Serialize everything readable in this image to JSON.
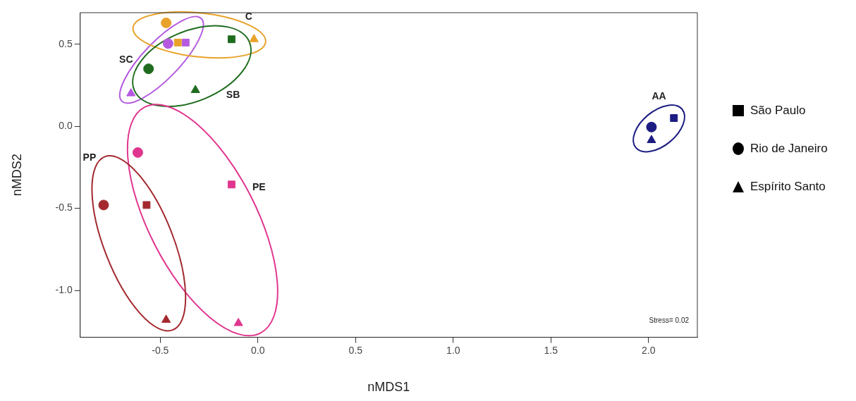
{
  "chart_data": {
    "type": "scatter",
    "xlabel": "nMDS1",
    "ylabel": "nMDS2",
    "xlim": [
      -0.91,
      2.25
    ],
    "ylim": [
      -1.286,
      0.692
    ],
    "xticks": [
      -0.5,
      {
        "value": 0,
        "label": "0.0"
      },
      0.5,
      {
        "value": 1,
        "label": "1.0"
      },
      1.5,
      {
        "value": 2,
        "label": "2.0"
      }
    ],
    "yticks": [
      {
        "value": -1,
        "label": "-1.0"
      },
      -0.5,
      {
        "value": 0,
        "label": "0.0"
      },
      0.5
    ],
    "grid": false,
    "legend": "right",
    "series": [
      {
        "name": "São Paulo",
        "marker": "square",
        "color": "#000000",
        "x": [
          -0.37,
          -0.41,
          -0.135,
          2.13,
          -0.135,
          -0.57
        ],
        "values": [
          0.51,
          0.51,
          0.53,
          0.05,
          -0.355,
          -0.48
        ],
        "colors": [
          "#b55ae0",
          "#e8a22a",
          "#1e6b1e",
          "#1c1c82",
          "#e0368f",
          "#a3292f"
        ]
      },
      {
        "name": "Rio de Janeiro",
        "marker": "circle",
        "color": "#000000",
        "x": [
          -0.46,
          -0.47,
          -0.56,
          2.015,
          -0.615,
          -0.79
        ],
        "values": [
          0.504,
          0.63,
          0.35,
          -0.005,
          -0.16,
          -0.48
        ],
        "colors": [
          "#b55ae0",
          "#e8a22a",
          "#1e6b1e",
          "#1c1c82",
          "#e0368f",
          "#a3292f"
        ]
      },
      {
        "name": "Espírito Santo",
        "marker": "triangle",
        "color": "#000000",
        "x": [
          -0.65,
          -0.02,
          -0.32,
          2.015,
          -0.1,
          -0.47
        ],
        "values": [
          0.2,
          0.53,
          0.22,
          -0.085,
          -1.2,
          -1.18
        ],
        "colors": [
          "#b55ae0",
          "#e8a22a",
          "#1e6b1e",
          "#1c1c82",
          "#e0368f",
          "#a3292f"
        ]
      }
    ],
    "annotations": [
      "SC",
      "C",
      "SB",
      "AA",
      "PE",
      "PP",
      "Stress= 0.02"
    ]
  }
}
